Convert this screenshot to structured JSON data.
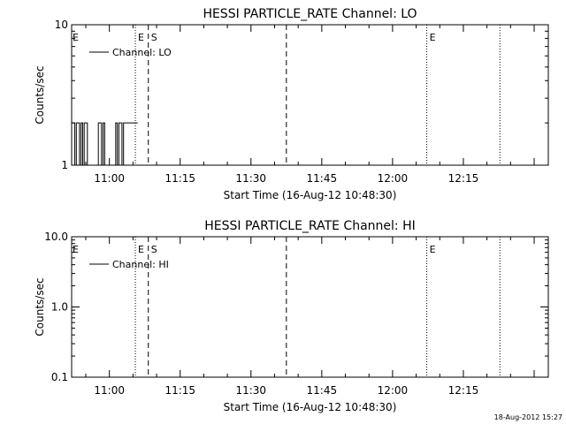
{
  "footer_timestamp": "18-Aug-2012 15:27",
  "chart_data": [
    {
      "type": "line",
      "title": "HESSI PARTICLE_RATE Channel: LO",
      "xlabel": "Start Time (16-Aug-12 10:48:30)",
      "ylabel": "Counts/sec",
      "y_scale": "log",
      "ylim": [
        1,
        10
      ],
      "y_ticks": [
        {
          "value": 1,
          "label": "1"
        },
        {
          "value": 10,
          "label": "10"
        }
      ],
      "xlim": [
        "10:52",
        "12:33"
      ],
      "x_ticks": [
        "11:00",
        "11:15",
        "11:30",
        "11:45",
        "12:00",
        "12:15"
      ],
      "legend": {
        "label": "Channel: LO",
        "placement": "top-left"
      },
      "series": [
        {
          "name": "Channel: LO",
          "points": [
            [
              "10:52:00",
              2
            ],
            [
              "10:52:40",
              2
            ],
            [
              "10:52:40",
              1
            ],
            [
              "10:53:00",
              1
            ],
            [
              "10:53:00",
              2
            ],
            [
              "10:53:40",
              2
            ],
            [
              "10:53:40",
              1
            ],
            [
              "10:54:00",
              1
            ],
            [
              "10:54:00",
              2
            ],
            [
              "10:54:20",
              2
            ],
            [
              "10:54:20",
              1
            ],
            [
              "10:54:40",
              1
            ],
            [
              "10:54:40",
              2
            ],
            [
              "10:55:20",
              2
            ],
            [
              "10:55:20",
              1
            ],
            [
              "10:57:40",
              1
            ],
            [
              "10:57:40",
              2
            ],
            [
              "10:58:20",
              2
            ],
            [
              "10:58:20",
              1
            ],
            [
              "10:58:40",
              1
            ],
            [
              "10:58:40",
              2
            ],
            [
              "10:59:00",
              2
            ],
            [
              "10:59:00",
              1
            ],
            [
              "11:01:20",
              1
            ],
            [
              "11:01:20",
              2
            ],
            [
              "11:01:40",
              2
            ],
            [
              "11:01:40",
              1
            ],
            [
              "11:02:00",
              1
            ],
            [
              "11:02:00",
              2
            ],
            [
              "11:02:40",
              2
            ],
            [
              "11:02:40",
              1
            ],
            [
              "11:03:00",
              1
            ],
            [
              "11:03:00",
              2
            ],
            [
              "11:06:00",
              2
            ]
          ]
        }
      ],
      "markers": [
        {
          "time": "11:05:30",
          "style": "dotted",
          "label": "E"
        },
        {
          "time": "11:08:15",
          "style": "dashed",
          "label": "S"
        },
        {
          "time": "11:37:30",
          "style": "dashed",
          "label": ""
        },
        {
          "time": "12:07:15",
          "style": "dotted",
          "label": "E"
        },
        {
          "time": "12:22:45",
          "style": "dotted",
          "label": ""
        }
      ],
      "left_edge_label": "E"
    },
    {
      "type": "line",
      "title": "HESSI PARTICLE_RATE Channel: HI",
      "xlabel": "Start Time (16-Aug-12 10:48:30)",
      "ylabel": "Counts/sec",
      "y_scale": "log",
      "ylim": [
        0.1,
        10
      ],
      "y_ticks": [
        {
          "value": 0.1,
          "label": "0.1"
        },
        {
          "value": 1,
          "label": "1.0"
        },
        {
          "value": 10,
          "label": "10.0"
        }
      ],
      "xlim": [
        "10:52",
        "12:33"
      ],
      "x_ticks": [
        "11:00",
        "11:15",
        "11:30",
        "11:45",
        "12:00",
        "12:15"
      ],
      "legend": {
        "label": "Channel: HI",
        "placement": "top-left"
      },
      "series": [
        {
          "name": "Channel: HI",
          "points": []
        }
      ],
      "markers": [
        {
          "time": "11:05:30",
          "style": "dotted",
          "label": "E"
        },
        {
          "time": "11:08:15",
          "style": "dashed",
          "label": "S"
        },
        {
          "time": "11:37:30",
          "style": "dashed",
          "label": ""
        },
        {
          "time": "12:07:15",
          "style": "dotted",
          "label": "E"
        },
        {
          "time": "12:22:45",
          "style": "dotted",
          "label": ""
        }
      ],
      "left_edge_label": "E"
    }
  ]
}
